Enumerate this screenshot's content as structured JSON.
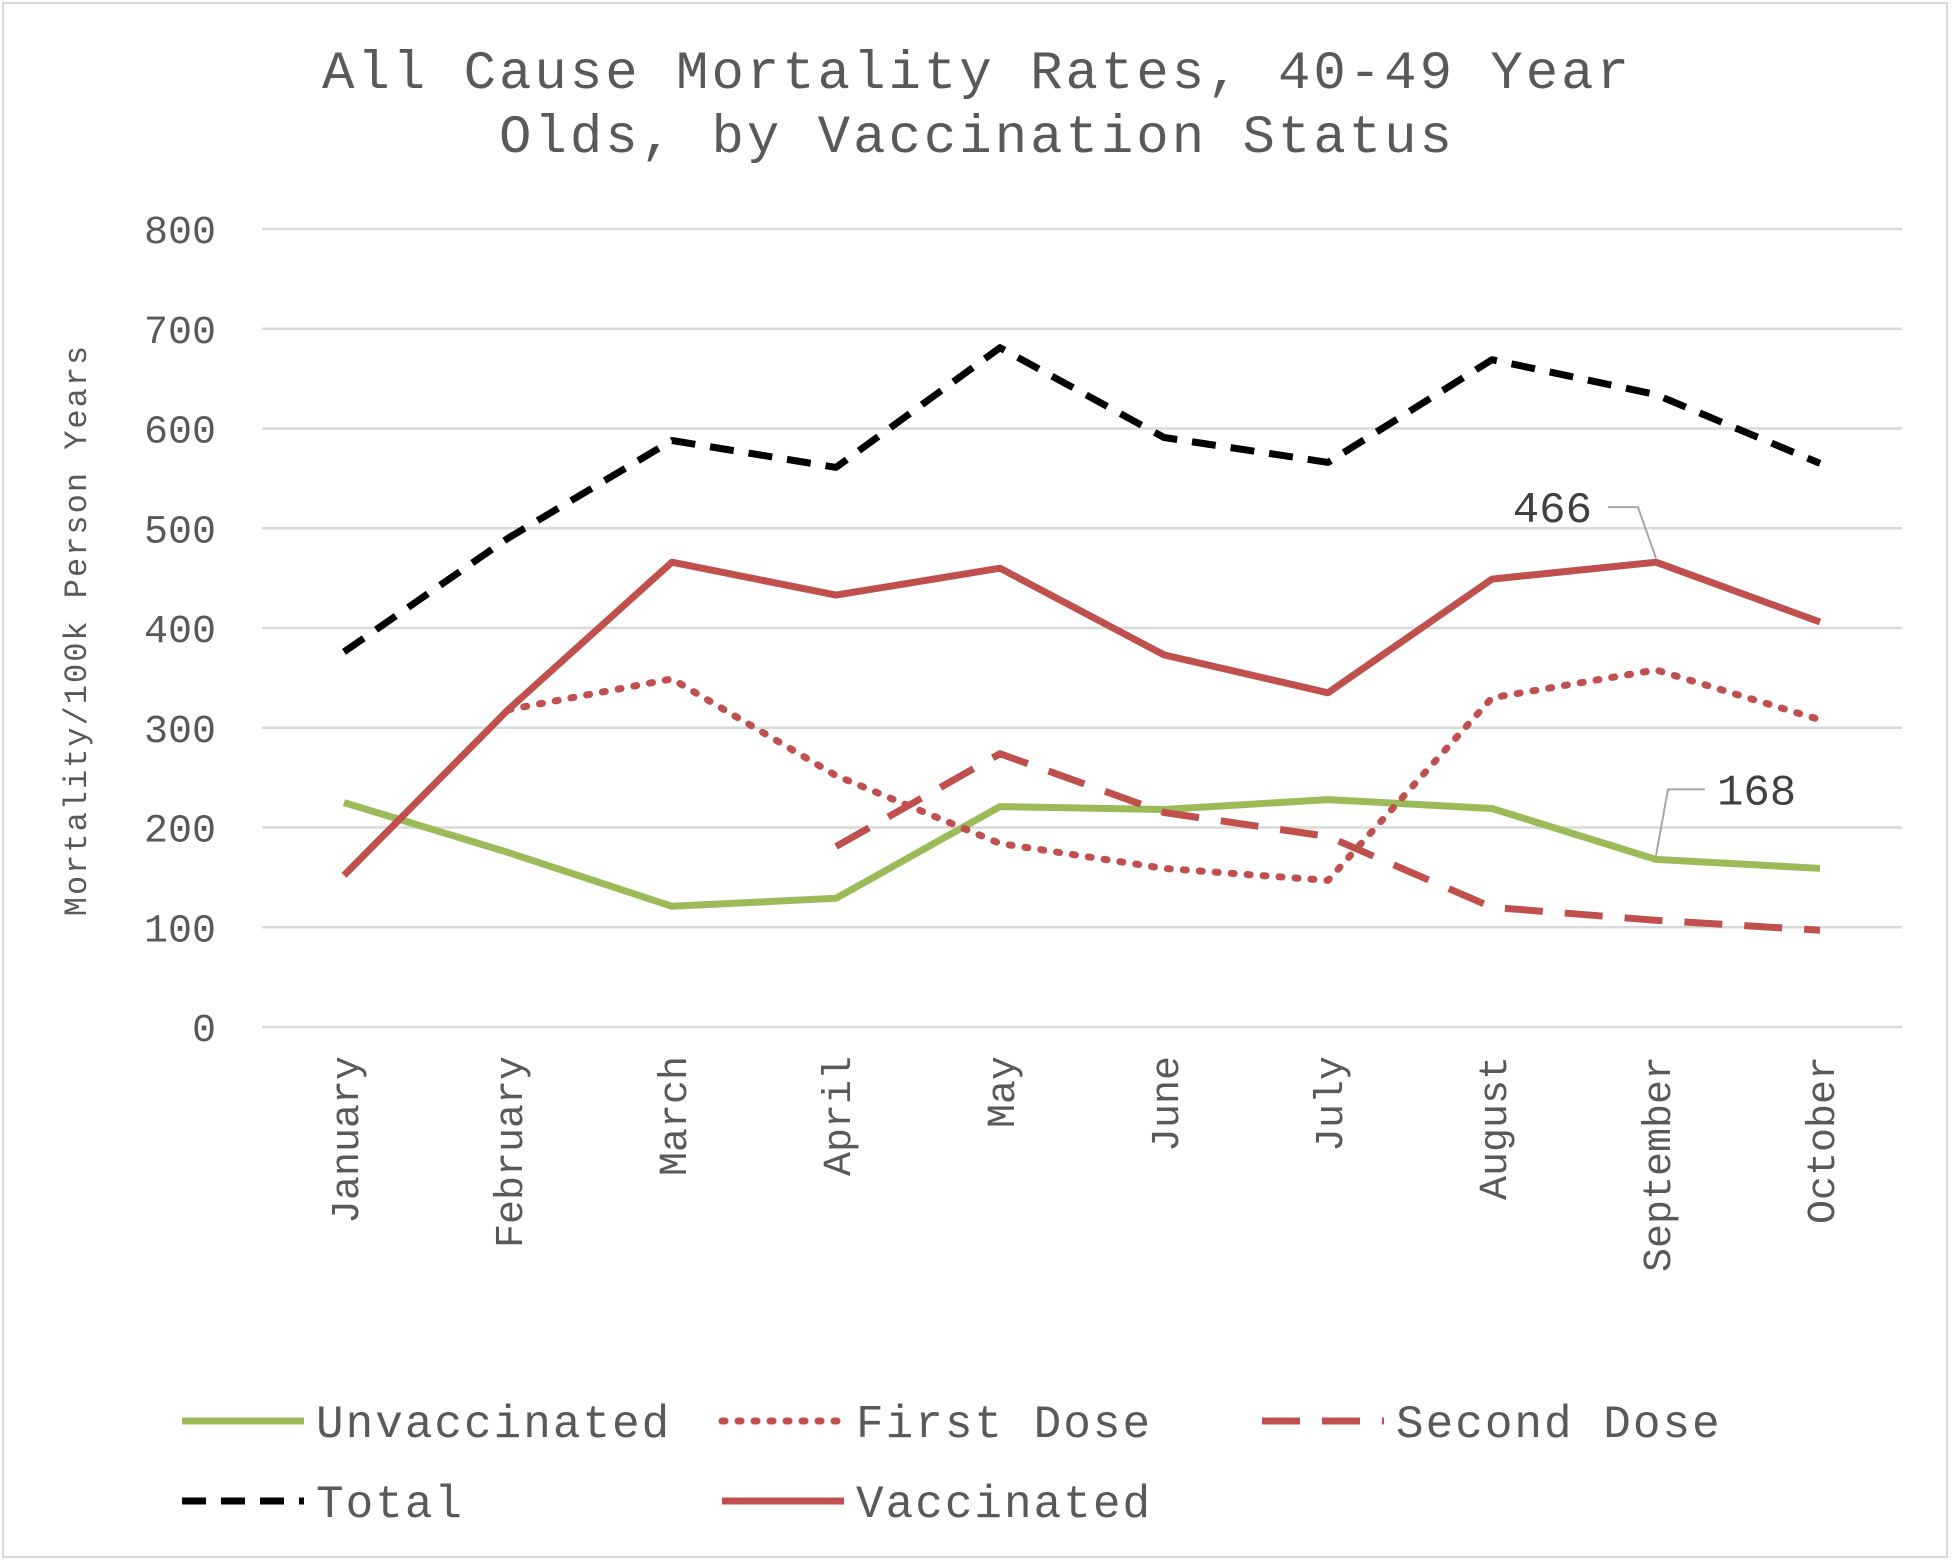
{
  "chart_data": {
    "type": "line",
    "title_line1": "All Cause Mortality Rates, 40-49 Year",
    "title_line2": "Olds, by Vaccination Status",
    "ylabel": "Mortality/100k Person Years",
    "xlabel": "",
    "ylim": [
      0,
      800
    ],
    "yticks": [
      0,
      100,
      200,
      300,
      400,
      500,
      600,
      700,
      800
    ],
    "grid": true,
    "legend_position": "bottom",
    "categories": [
      "January",
      "February",
      "March",
      "April",
      "May",
      "June",
      "July",
      "August",
      "September",
      "October"
    ],
    "series": [
      {
        "name": "Unvaccinated",
        "color": "#9bbb59",
        "style": "solid",
        "values": [
          225,
          175,
          121,
          129,
          221,
          218,
          228,
          219,
          168,
          159
        ]
      },
      {
        "name": "First Dose",
        "color": "#c0504d",
        "style": "dotted",
        "values": [
          null,
          318,
          349,
          252,
          184,
          159,
          147,
          330,
          358,
          308
        ]
      },
      {
        "name": "Second Dose",
        "color": "#c0504d",
        "style": "dashed",
        "values": [
          null,
          null,
          null,
          181,
          274,
          215,
          191,
          120,
          107,
          97
        ]
      },
      {
        "name": "Total",
        "color": "#000000",
        "style": "dashed-short",
        "values": [
          376,
          490,
          588,
          561,
          681,
          591,
          566,
          669,
          634,
          565
        ]
      },
      {
        "name": "Vaccinated",
        "color": "#c0504d",
        "style": "solid",
        "values": [
          152,
          318,
          466,
          433,
          460,
          373,
          335,
          449,
          466,
          406
        ]
      }
    ],
    "annotations": [
      {
        "text": "466",
        "series": "Vaccinated",
        "category": "September"
      },
      {
        "text": "168",
        "series": "Unvaccinated",
        "category": "September"
      }
    ]
  }
}
